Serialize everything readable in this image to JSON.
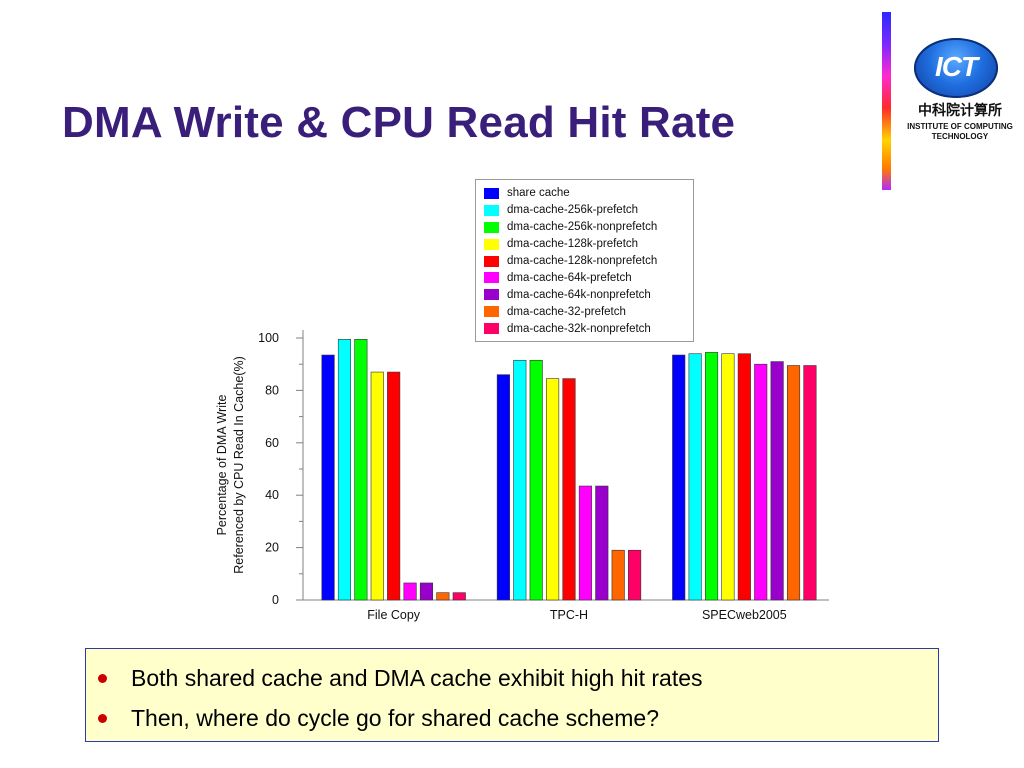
{
  "slide": {
    "title": "DMA Write & CPU Read Hit Rate"
  },
  "logo": {
    "mark_text": "ICT",
    "cn_text": "中科院计算所",
    "en_line1": "INSTITUTE OF COMPUTING",
    "en_line2": "TECHNOLOGY"
  },
  "notes": [
    "Both shared cache and DMA cache exhibit high hit rates",
    "Then, where do cycle go for shared cache scheme?"
  ],
  "chart_data": {
    "type": "bar",
    "title": "",
    "xlabel": "",
    "ylabel_line1": "Percentage of DMA Write",
    "ylabel_line2": "Referenced by CPU Read In Cache(%)",
    "ylim": [
      0,
      100
    ],
    "yticks": [
      "0",
      "20",
      "40",
      "60",
      "80",
      "100"
    ],
    "grid": false,
    "legend_position": "top",
    "categories": [
      "File Copy",
      "TPC-H",
      "SPECweb2005"
    ],
    "series": [
      {
        "name": "share cache",
        "color": "#0000ff",
        "values": [
          93.5,
          86,
          93.5
        ]
      },
      {
        "name": "dma-cache-256k-prefetch",
        "color": "#00ffff",
        "values": [
          99.5,
          91.5,
          94
        ]
      },
      {
        "name": "dma-cache-256k-nonprefetch",
        "color": "#00ff00",
        "values": [
          99.5,
          91.5,
          94.5
        ]
      },
      {
        "name": "dma-cache-128k-prefetch",
        "color": "#ffff00",
        "values": [
          87,
          84.5,
          94
        ]
      },
      {
        "name": "dma-cache-128k-nonprefetch",
        "color": "#ff0000",
        "values": [
          87,
          84.5,
          94
        ]
      },
      {
        "name": "dma-cache-64k-prefetch",
        "color": "#ff00ff",
        "values": [
          6.5,
          43.5,
          90
        ]
      },
      {
        "name": "dma-cache-64k-nonprefetch",
        "color": "#9900cc",
        "values": [
          6.5,
          43.5,
          91
        ]
      },
      {
        "name": "dma-cache-32-prefetch",
        "color": "#ff6600",
        "values": [
          2.8,
          19,
          89.5
        ]
      },
      {
        "name": "dma-cache-32k-nonprefetch",
        "color": "#ff0066",
        "values": [
          2.8,
          19,
          89.5
        ]
      }
    ]
  }
}
